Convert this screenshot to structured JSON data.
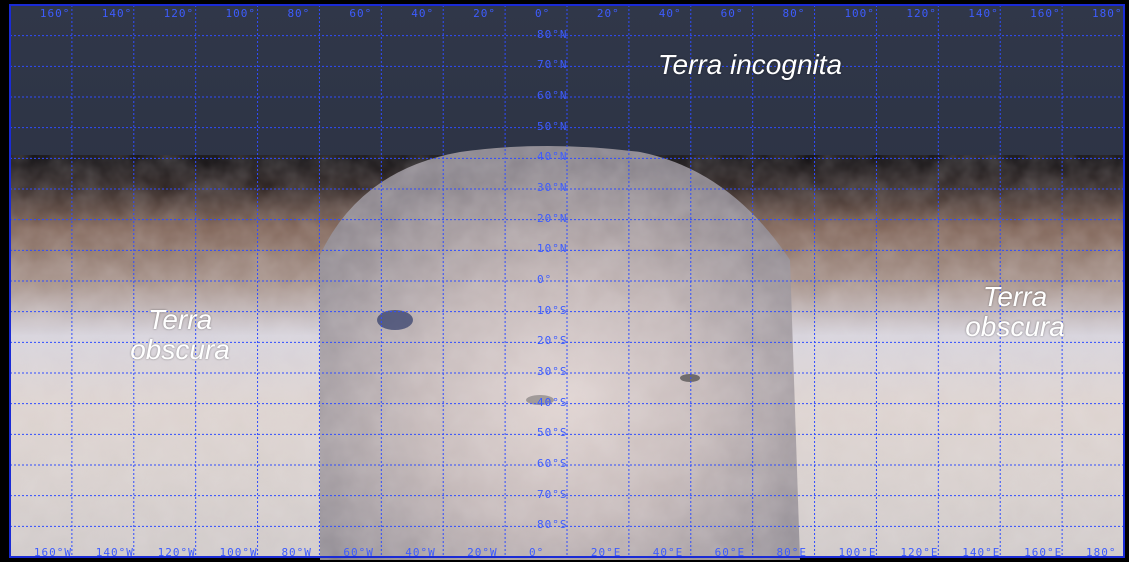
{
  "map": {
    "labels": {
      "incognita": "Terra incognita",
      "obscura_left_1": "Terra",
      "obscura_left_2": "obscura",
      "obscura_right_1": "Terra",
      "obscura_right_2": "obscura"
    },
    "longitude_ticks_top": [
      "160°",
      "140°",
      "120°",
      "100°",
      "80°",
      "60°",
      "40°",
      "20°",
      "0°",
      "20°",
      "40°",
      "60°",
      "80°",
      "100°",
      "120°",
      "140°",
      "160°",
      "180°"
    ],
    "longitude_ticks_bottom": [
      "160°W",
      "140°W",
      "120°W",
      "100°W",
      "80°W",
      "60°W",
      "40°W",
      "20°W",
      "0°",
      "20°E",
      "40°E",
      "60°E",
      "80°E",
      "100°E",
      "120°E",
      "140°E",
      "160°E",
      "180°"
    ],
    "latitude_ticks": [
      "80°N",
      "70°N",
      "60°N",
      "50°N",
      "40°N",
      "30°N",
      "20°N",
      "10°N",
      "0°",
      "10°S",
      "20°S",
      "30°S",
      "40°S",
      "50°S",
      "60°S",
      "70°S",
      "80°S"
    ],
    "colors": {
      "grid": "#2f4cff",
      "sky": "#2a3142",
      "surface_light": "#d9d3d4",
      "surface_mid": "#b8a9a5",
      "surface_dark": "#3a2a25",
      "border": "#1a2bd6"
    }
  }
}
